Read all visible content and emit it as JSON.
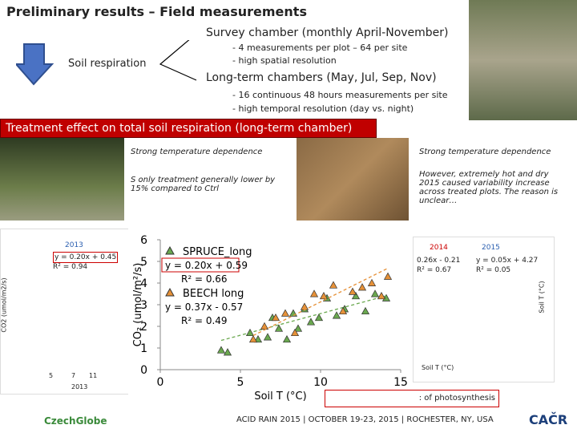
{
  "header": {
    "title": "Preliminary results – Field measurements"
  },
  "flow": {
    "label": "Soil respiration"
  },
  "survey": {
    "title": "Survey chamber (monthly April-November)",
    "bullets": [
      "- 4 measurements per plot – 64 per site",
      "- high spatial resolution"
    ]
  },
  "longterm": {
    "title": "Long-term chambers (May, Jul, Sep, Nov)",
    "bullets": [
      "- 16 continuous 48 hours measurements per site",
      "- high temporal resolution (day vs. night)"
    ]
  },
  "banner": "Treatment effect on total soil respiration (long-term chamber)",
  "notes": {
    "left": [
      "Strong temperature dependence",
      "S only treatment generally lower by 15% compared to Ctrl"
    ],
    "right": [
      "Strong temperature dependence",
      "However, extremely hot and dry 2015 caused variability increase across treated plots. The reason is unclear…"
    ]
  },
  "left_panel": {
    "year": "2013",
    "equation": "y = 0.20x + 0.45",
    "r2": "R² = 0.94",
    "ylabel": "CO2 (umol/m2/s)",
    "bottom": [
      "5",
      "7",
      "11",
      "2013"
    ]
  },
  "right_panel": {
    "years": [
      "2014",
      "2015"
    ],
    "equations": [
      "0.26x - 0.21",
      "y = 0.05x + 4.27"
    ],
    "r2": [
      "R² = 0.67",
      "R² = 0.05"
    ],
    "xlabel": "Soil T (°C)",
    "ylabel": "Soil T (°C)"
  },
  "chart_data": {
    "type": "scatter",
    "xlabel": "Soil T (°C)",
    "ylabel": "CO₂ (umol/m²/s)",
    "xlim": [
      0,
      15
    ],
    "ylim": [
      0,
      6
    ],
    "xticks": [
      0,
      5,
      10,
      15
    ],
    "yticks": [
      0,
      1,
      2,
      3,
      4,
      5,
      6
    ],
    "series": [
      {
        "name": "SPRUCE_long",
        "color": "#6aa84f",
        "equation": "y = 0.20x + 0.59",
        "r2": "R² = 0.66",
        "slope": 0.2,
        "intercept": 0.59,
        "x": [
          3.8,
          4.2,
          5.6,
          6.1,
          6.7,
          7.0,
          7.4,
          7.9,
          8.3,
          8.6,
          9.0,
          9.4,
          9.9,
          10.4,
          11.0,
          11.5,
          12.2,
          12.8,
          13.4,
          14.1
        ],
        "values": [
          0.9,
          0.8,
          1.7,
          1.4,
          1.5,
          2.4,
          1.9,
          1.4,
          2.6,
          1.9,
          2.8,
          2.2,
          2.4,
          3.3,
          2.5,
          2.8,
          3.4,
          2.7,
          3.5,
          3.3
        ]
      },
      {
        "name": "BEECH long",
        "color": "#e69138",
        "equation": "y = 0.37x - 0.57",
        "r2": "R² = 0.49",
        "slope": 0.37,
        "intercept": -0.57,
        "x": [
          5.8,
          6.5,
          7.2,
          7.8,
          8.4,
          9.0,
          9.6,
          10.2,
          10.8,
          11.4,
          12.0,
          12.6,
          13.2,
          13.8,
          14.2
        ],
        "values": [
          1.4,
          2.0,
          2.4,
          2.6,
          1.7,
          2.9,
          3.5,
          3.4,
          3.9,
          2.7,
          3.6,
          3.8,
          4.0,
          3.4,
          4.3
        ]
      }
    ]
  },
  "footer": {
    "callout": ": of photosynthesis",
    "caption": "ACID RAIN 2015 | OCTOBER 19-23, 2015 | ROCHESTER, NY, USA",
    "logos": [
      "CzechGlobe",
      "CAČR"
    ]
  }
}
